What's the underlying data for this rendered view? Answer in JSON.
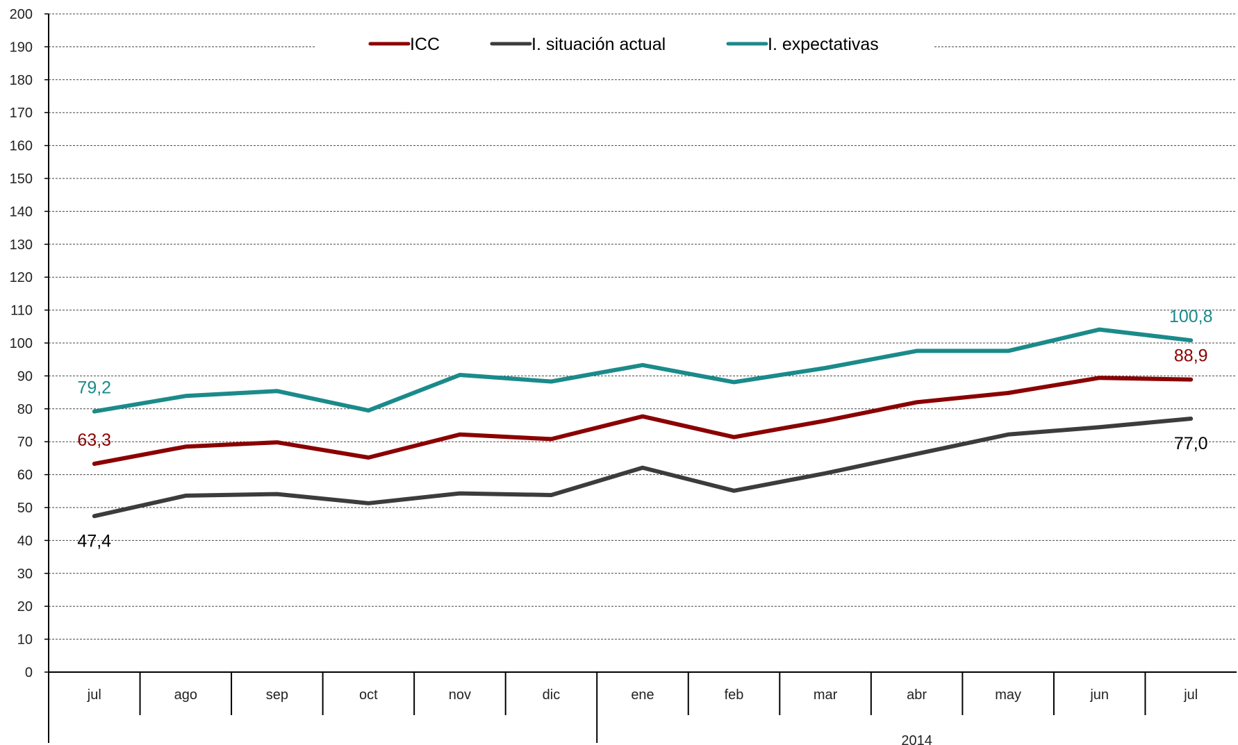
{
  "chart_data": {
    "type": "line",
    "title": "",
    "xlabel": "",
    "ylabel": "",
    "ylim": [
      0,
      200
    ],
    "yticks": [
      0,
      10,
      20,
      30,
      40,
      50,
      60,
      70,
      80,
      90,
      100,
      110,
      120,
      130,
      140,
      150,
      160,
      170,
      180,
      190,
      200
    ],
    "grid": true,
    "legend_position": "top-center",
    "categories": [
      "jul",
      "ago",
      "sep",
      "oct",
      "nov",
      "dic",
      "ene",
      "feb",
      "mar",
      "abr",
      "may",
      "jun",
      "jul"
    ],
    "year_groups": [
      {
        "label": "",
        "start": 0,
        "end": 5
      },
      {
        "label": "2014",
        "start": 6,
        "end": 12
      }
    ],
    "series": [
      {
        "name": "ICC",
        "color": "#8b0000",
        "values": [
          63.3,
          68.5,
          69.8,
          65.2,
          72.2,
          70.8,
          77.7,
          71.4,
          76.4,
          82.0,
          84.8,
          89.4,
          88.9
        ],
        "labels": [
          {
            "index": 0,
            "text": "63,3",
            "pos": "above"
          },
          {
            "index": 12,
            "text": "88,9",
            "pos": "above"
          }
        ]
      },
      {
        "name": "I. situación actual",
        "color": "#3c3c3c",
        "values": [
          47.4,
          53.6,
          54.1,
          51.3,
          54.3,
          53.8,
          62.1,
          55.1,
          60.4,
          66.3,
          72.2,
          74.4,
          77.0
        ],
        "labels": [
          {
            "index": 0,
            "text": "47,4",
            "pos": "below"
          },
          {
            "index": 12,
            "text": "77,0",
            "pos": "below"
          }
        ]
      },
      {
        "name": "I. expectativas",
        "color": "#1b8a8a",
        "values": [
          79.2,
          83.9,
          85.4,
          79.5,
          90.3,
          88.3,
          93.3,
          88.1,
          92.4,
          97.6,
          97.6,
          104.1,
          100.8
        ],
        "labels": [
          {
            "index": 0,
            "text": "79,2",
            "pos": "above"
          },
          {
            "index": 12,
            "text": "100,8",
            "pos": "above"
          }
        ]
      }
    ]
  }
}
